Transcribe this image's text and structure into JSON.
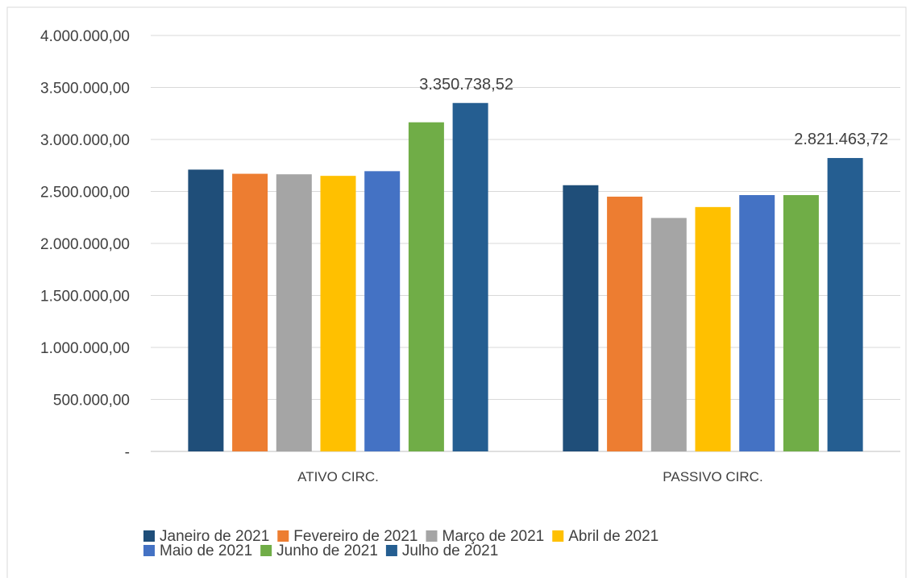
{
  "chart_data": {
    "type": "bar",
    "title": "",
    "xlabel": "",
    "ylabel": "",
    "categories": [
      "ATIVO CIRC.",
      "PASSIVO CIRC."
    ],
    "ylim": [
      0,
      4000000
    ],
    "yticks": [
      0,
      500000,
      1000000,
      1500000,
      2000000,
      2500000,
      3000000,
      3500000,
      4000000
    ],
    "ytick_labels": [
      "-",
      "500.000,00",
      "1.000.000,00",
      "1.500.000,00",
      "2.000.000,00",
      "2.500.000,00",
      "3.000.000,00",
      "3.500.000,00",
      "4.000.000,00"
    ],
    "grid": true,
    "legend_position": "bottom",
    "series": [
      {
        "name": "Janeiro de 2021",
        "color": "#1f4e79",
        "values": [
          2710000,
          2560000
        ]
      },
      {
        "name": "Fevereiro de 2021",
        "color": "#ed7d31",
        "values": [
          2670000,
          2450000
        ]
      },
      {
        "name": "Março de 2021",
        "color": "#a5a5a5",
        "values": [
          2665000,
          2245000
        ]
      },
      {
        "name": "Abril de 2021",
        "color": "#ffc000",
        "values": [
          2650000,
          2350000
        ]
      },
      {
        "name": "Maio de 2021",
        "color": "#4472c4",
        "values": [
          2695000,
          2465000
        ]
      },
      {
        "name": "Junho de 2021",
        "color": "#70ad47",
        "values": [
          3165000,
          2465000
        ]
      },
      {
        "name": "Julho de 2021",
        "color": "#255e91",
        "values": [
          3350738.52,
          2821463.72
        ]
      }
    ],
    "data_labels": [
      {
        "series": "Julho de 2021",
        "category": "ATIVO CIRC.",
        "text": "3.350.738,52"
      },
      {
        "series": "Julho de 2021",
        "category": "PASSIVO CIRC.",
        "text": "2.821.463,72"
      }
    ]
  }
}
